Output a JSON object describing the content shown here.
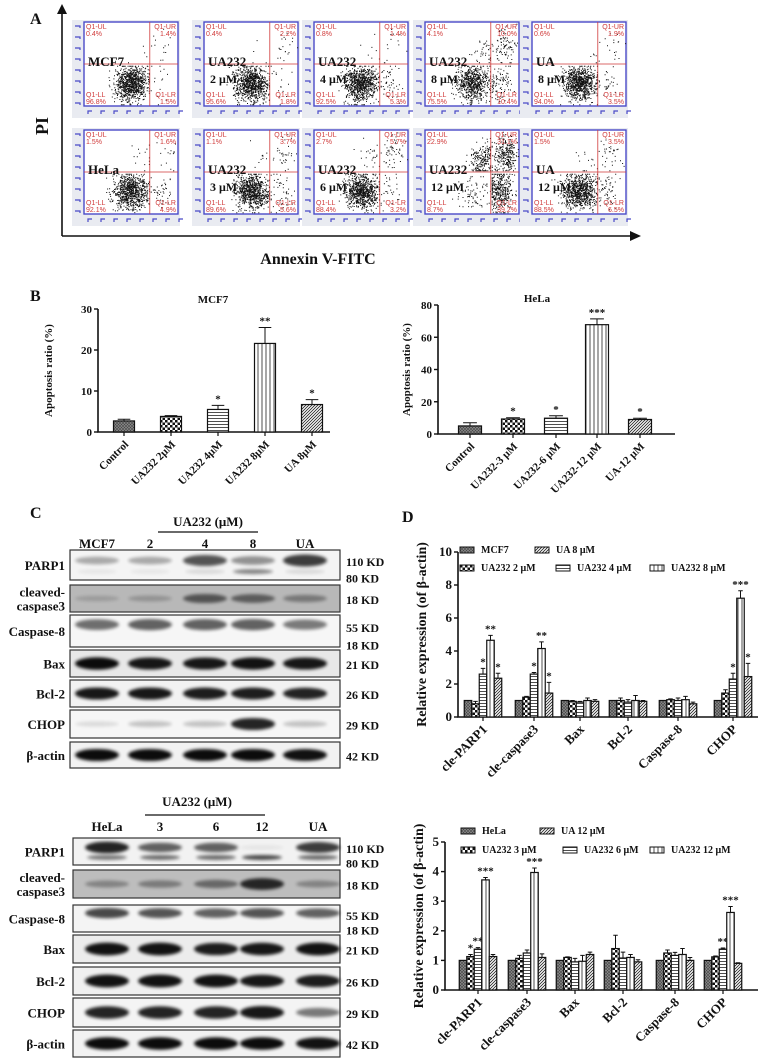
{
  "panel_labels": {
    "a": "A",
    "b": "B",
    "c": "C",
    "d": "D"
  },
  "flow": {
    "y_axis_label": "PI",
    "x_axis_label": "Annexin V-FITC",
    "quadrant_names": {
      "ul": "Q1-UL",
      "ur": "Q1-UR",
      "ll": "Q1-LL",
      "lr": "Q1-LR"
    },
    "colors": {
      "quadrant": "#d03a3a",
      "frame": "#4a4ac8",
      "dots": "#111111"
    },
    "plots": [
      {
        "sample": "MCF7",
        "dose": "",
        "ul": "0.4%",
        "ur": "1.4%",
        "ll": "96.8%",
        "lr": "1.5%"
      },
      {
        "sample": "UA232",
        "dose": "2 μM",
        "ul": "0.4%",
        "ur": "2.2%",
        "ll": "95.6%",
        "lr": "1.8%"
      },
      {
        "sample": "UA232",
        "dose": "4 μM",
        "ul": "0.8%",
        "ur": "1.4%",
        "ll": "92.5%",
        "lr": "5.3%"
      },
      {
        "sample": "UA232",
        "dose": "8 μM",
        "ul": "4.1%",
        "ur": "10.0%",
        "ll": "75.5%",
        "lr": "10.4%"
      },
      {
        "sample": "UA",
        "dose": "8 μM",
        "ul": "0.6%",
        "ur": "1.9%",
        "ll": "94.0%",
        "lr": "3.5%"
      },
      {
        "sample": "HeLa",
        "dose": "",
        "ul": "1.5%",
        "ur": "1.6%",
        "ll": "92.1%",
        "lr": "4.9%"
      },
      {
        "sample": "UA232",
        "dose": "3 μM",
        "ul": "1.1%",
        "ur": "3.7%",
        "ll": "89.6%",
        "lr": "5.6%"
      },
      {
        "sample": "UA232",
        "dose": "6 μM",
        "ul": "2.7%",
        "ur": "5.7%",
        "ll": "88.4%",
        "lr": "3.2%"
      },
      {
        "sample": "UA232",
        "dose": "12 μM",
        "ul": "22.9%",
        "ur": "31.1%",
        "ll": "8.7%",
        "lr": "39.2%"
      },
      {
        "sample": "UA",
        "dose": "12 μM",
        "ul": "1.5%",
        "ur": "3.5%",
        "ll": "88.5%",
        "lr": "6.5%"
      }
    ]
  },
  "chart_data": [
    {
      "type": "bar",
      "panel": "B",
      "title": "MCF7",
      "ylabel": "Apoptosis ratio (%)",
      "xlabel": "",
      "ylim": [
        0,
        30
      ],
      "yticks": [
        0,
        10,
        20,
        30
      ],
      "categories": [
        "Control",
        "UA232  2μM",
        "UA232 4μM",
        "UA232 8μM",
        "UA 8μM"
      ],
      "values": [
        2.7,
        3.8,
        5.5,
        21.6,
        6.7
      ],
      "errors": [
        0.4,
        0.2,
        1.0,
        3.9,
        1.2
      ],
      "significance": [
        "",
        "",
        "*",
        "**",
        "*"
      ],
      "patterns": [
        "crosshatch",
        "checker",
        "horizontal-lines",
        "vertical-lines",
        "diagonal-lines"
      ]
    },
    {
      "type": "bar",
      "panel": "B",
      "title": "HeLa",
      "ylabel": "Apoptosis ratio (%)",
      "xlabel": "",
      "ylim": [
        0,
        80
      ],
      "yticks": [
        0,
        20,
        40,
        60,
        80
      ],
      "categories": [
        "Control",
        "UA232-3 μM",
        "UA232-6 μM",
        "UA232-12 μM",
        "UA-12 μM"
      ],
      "values": [
        5.0,
        9.3,
        9.8,
        67.8,
        9.0
      ],
      "errors": [
        2.0,
        0.8,
        1.5,
        3.6,
        0.8
      ],
      "significance": [
        "",
        "*",
        "*",
        "***",
        "*"
      ],
      "patterns": [
        "crosshatch",
        "checker",
        "horizontal-lines",
        "vertical-lines",
        "diagonal-lines"
      ]
    },
    {
      "type": "bar",
      "panel": "D",
      "title": "",
      "ylabel": "Relative expression (of β-actin)",
      "xlabel": "",
      "ylim": [
        0,
        10
      ],
      "yticks": [
        0,
        2,
        4,
        6,
        8,
        10
      ],
      "categories": [
        "cle-PARP1",
        "cle-caspase3",
        "Bax",
        "Bcl-2",
        "Caspase-8",
        "CHOP"
      ],
      "series": [
        {
          "name": "MCF7",
          "pattern": "crosshatch",
          "values": [
            1,
            1,
            1,
            1,
            1,
            1
          ],
          "errors": [
            0,
            0,
            0,
            0,
            0,
            0
          ]
        },
        {
          "name": "UA232 2 μM",
          "pattern": "checker",
          "values": [
            0.8,
            1.2,
            0.95,
            1.0,
            1.05,
            1.45
          ],
          "errors": [
            0.15,
            0.05,
            0.05,
            0.15,
            0.05,
            0.2
          ]
        },
        {
          "name": "UA232 4 μM",
          "pattern": "horizontal-lines",
          "values": [
            2.6,
            2.6,
            0.9,
            0.9,
            1.0,
            2.3
          ],
          "errors": [
            0.35,
            0.1,
            0.05,
            0.15,
            0.15,
            0.35
          ]
        },
        {
          "name": "UA232 8 μM",
          "pattern": "vertical-lines",
          "values": [
            4.65,
            4.15,
            1.0,
            1.0,
            1.05,
            7.2
          ],
          "errors": [
            0.3,
            0.4,
            0.15,
            0.3,
            0.2,
            0.45
          ]
        },
        {
          "name": "UA 8 μM",
          "pattern": "diagonal-lines",
          "values": [
            2.35,
            1.45,
            0.95,
            0.95,
            0.8,
            2.45
          ],
          "errors": [
            0.3,
            0.65,
            0.1,
            0.05,
            0.1,
            0.8
          ]
        }
      ],
      "legend_order": [
        0,
        4,
        1,
        2,
        3
      ],
      "legend": "top",
      "significance": [
        [
          "",
          "",
          "*",
          "**",
          "*"
        ],
        [
          "",
          "",
          "*",
          "**",
          "*"
        ],
        [
          "",
          "",
          "",
          "",
          ""
        ],
        [
          "",
          "",
          "",
          "",
          ""
        ],
        [
          "",
          "",
          "",
          "",
          ""
        ],
        [
          "",
          "",
          "*",
          "***",
          "*"
        ]
      ]
    },
    {
      "type": "bar",
      "panel": "D",
      "title": "",
      "ylabel": "Relative expression (of β-actin)",
      "xlabel": "",
      "ylim": [
        0,
        5
      ],
      "yticks": [
        0,
        1,
        2,
        3,
        4,
        5
      ],
      "categories": [
        "cle-PARP1",
        "cle-caspase3",
        "Bax",
        "Bcl-2",
        "Caspase-8",
        "CHOP"
      ],
      "series": [
        {
          "name": "HeLa",
          "pattern": "crosshatch",
          "values": [
            1,
            1,
            1,
            1,
            1,
            1
          ],
          "errors": [
            0,
            0,
            0,
            0,
            0,
            0
          ]
        },
        {
          "name": "UA232 3 μM",
          "pattern": "checker",
          "values": [
            1.13,
            1.07,
            1.1,
            1.4,
            1.25,
            1.12
          ],
          "errors": [
            0.07,
            0.1,
            0.02,
            0.45,
            0.1,
            0.03
          ]
        },
        {
          "name": "UA232 6 μM",
          "pattern": "horizontal-lines",
          "values": [
            1.38,
            1.25,
            0.95,
            1.08,
            1.17,
            1.38
          ],
          "errors": [
            0.05,
            0.1,
            0.12,
            0.2,
            0.1,
            0.04
          ]
        },
        {
          "name": "UA232 12 μM",
          "pattern": "vertical-lines",
          "values": [
            3.72,
            3.97,
            0.97,
            1.1,
            1.2,
            2.62
          ],
          "errors": [
            0.08,
            0.15,
            0.2,
            0.1,
            0.2,
            0.2
          ]
        },
        {
          "name": "UA 12 μM",
          "pattern": "diagonal-lines",
          "values": [
            1.13,
            1.1,
            1.2,
            0.95,
            1.0,
            0.9
          ],
          "errors": [
            0.07,
            0.12,
            0.08,
            0.07,
            0.1,
            0.02
          ]
        }
      ],
      "legend_order": [
        0,
        4,
        1,
        2,
        3
      ],
      "legend": "top",
      "significance": [
        [
          "",
          "*",
          "**",
          "***",
          ""
        ],
        [
          "",
          "",
          "",
          "***",
          ""
        ],
        [
          "",
          "",
          "",
          "",
          ""
        ],
        [
          "",
          "",
          "",
          "",
          ""
        ],
        [
          "",
          "",
          "",
          "",
          ""
        ],
        [
          "",
          "",
          "**",
          "***",
          ""
        ]
      ]
    }
  ],
  "blots": [
    {
      "header": "UA232 (μM)",
      "lanes": [
        "MCF7",
        "2",
        "4",
        "8",
        "UA"
      ],
      "rows": [
        {
          "label": [
            "PARP1"
          ],
          "kd": [
            "110 KD",
            "80 KD"
          ],
          "bands": [
            0.3,
            0.3,
            0.65,
            0.4,
            0.75
          ],
          "lower_bands": [
            0.05,
            0.05,
            0.1,
            0.45,
            0.1
          ],
          "background": "#f4f4f4"
        },
        {
          "label": [
            "cleaved-",
            "caspase3"
          ],
          "kd": [
            "18 KD"
          ],
          "bands": [
            0.15,
            0.2,
            0.55,
            0.5,
            0.35
          ],
          "background": "#b8b8b8"
        },
        {
          "label": [
            "Caspase-8"
          ],
          "kd": [
            "55 KD",
            "18 KD"
          ],
          "bands": [
            0.55,
            0.6,
            0.6,
            0.6,
            0.5
          ],
          "background": "#f6f6f6"
        },
        {
          "label": [
            "Bax"
          ],
          "kd": [
            "21 KD"
          ],
          "bands": [
            0.95,
            0.9,
            0.9,
            0.92,
            0.9
          ],
          "background": "#e8e8e8"
        },
        {
          "label": [
            "Bcl-2"
          ],
          "kd": [
            "26 KD"
          ],
          "bands": [
            0.9,
            0.9,
            0.88,
            0.88,
            0.85
          ],
          "background": "#f2f2f2"
        },
        {
          "label": [
            "CHOP"
          ],
          "kd": [
            "29 KD"
          ],
          "bands": [
            0.1,
            0.2,
            0.2,
            0.85,
            0.2
          ],
          "background": "#f6f6f6"
        },
        {
          "label": [
            "β-actin"
          ],
          "kd": [
            "42 KD"
          ],
          "bands": [
            0.95,
            0.95,
            0.95,
            0.95,
            0.93
          ],
          "background": "#f2f2f2"
        }
      ]
    },
    {
      "header": "UA232 (μM)",
      "lanes": [
        "HeLa",
        "3",
        "6",
        "12",
        "UA"
      ],
      "rows": [
        {
          "label": [
            "PARP1"
          ],
          "kd": [
            "110 KD",
            "80 KD"
          ],
          "bands": [
            0.85,
            0.6,
            0.6,
            0.05,
            0.75
          ],
          "lower_bands": [
            0.5,
            0.55,
            0.55,
            0.7,
            0.55
          ],
          "background": "#f2f2f2"
        },
        {
          "label": [
            "cleaved-",
            "caspase3"
          ],
          "kd": [
            "18 KD"
          ],
          "bands": [
            0.3,
            0.35,
            0.45,
            0.8,
            0.3
          ],
          "background": "#bdbdbd"
        },
        {
          "label": [
            "Caspase-8"
          ],
          "kd": [
            "55 KD",
            "18 KD"
          ],
          "bands": [
            0.7,
            0.65,
            0.6,
            0.65,
            0.6
          ],
          "background": "#f4f4f4"
        },
        {
          "label": [
            "Bax"
          ],
          "kd": [
            "21 KD"
          ],
          "bands": [
            0.92,
            0.92,
            0.88,
            0.9,
            0.92
          ],
          "background": "#ececec"
        },
        {
          "label": [
            "Bcl-2"
          ],
          "kd": [
            "26 KD"
          ],
          "bands": [
            0.92,
            0.92,
            0.92,
            0.9,
            0.88
          ],
          "background": "#f0f0f0"
        },
        {
          "label": [
            "CHOP"
          ],
          "kd": [
            "29 KD"
          ],
          "bands": [
            0.85,
            0.85,
            0.85,
            0.9,
            0.5
          ],
          "background": "#f4f4f4"
        },
        {
          "label": [
            "β-actin"
          ],
          "kd": [
            "42 KD"
          ],
          "bands": [
            0.95,
            0.95,
            0.95,
            0.95,
            0.92
          ],
          "background": "#f2f2f2"
        }
      ]
    }
  ]
}
